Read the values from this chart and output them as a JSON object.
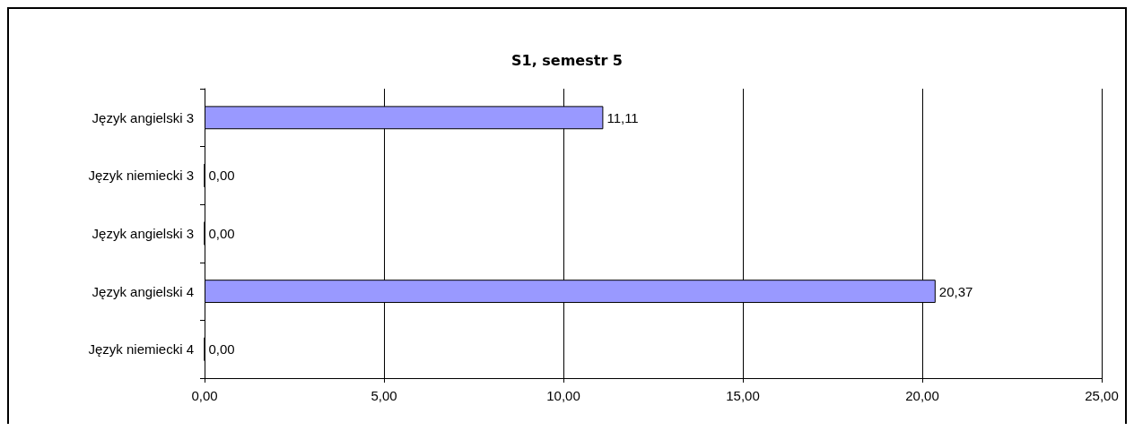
{
  "chart_data": {
    "type": "bar",
    "orientation": "horizontal",
    "title": "S1, semestr 5",
    "categories": [
      "Język angielski 3",
      "Język niemiecki 3",
      "Język angielski 3",
      "Język angielski 4",
      "Język niemiecki 4"
    ],
    "values": [
      11.11,
      0,
      0,
      20.37,
      0
    ],
    "value_labels": [
      "11,11",
      "0,00",
      "0,00",
      "20,37",
      "0,00"
    ],
    "color": "#9999ff",
    "xlim": [
      0,
      25
    ],
    "xticks": [
      {
        "value": 0,
        "label": "0,00"
      },
      {
        "value": 5,
        "label": "5,00"
      },
      {
        "value": 10,
        "label": "10,00"
      },
      {
        "value": 15,
        "label": "15,00"
      },
      {
        "value": 20,
        "label": "20,00"
      },
      {
        "value": 25,
        "label": "25,00"
      }
    ],
    "grid": "x"
  }
}
